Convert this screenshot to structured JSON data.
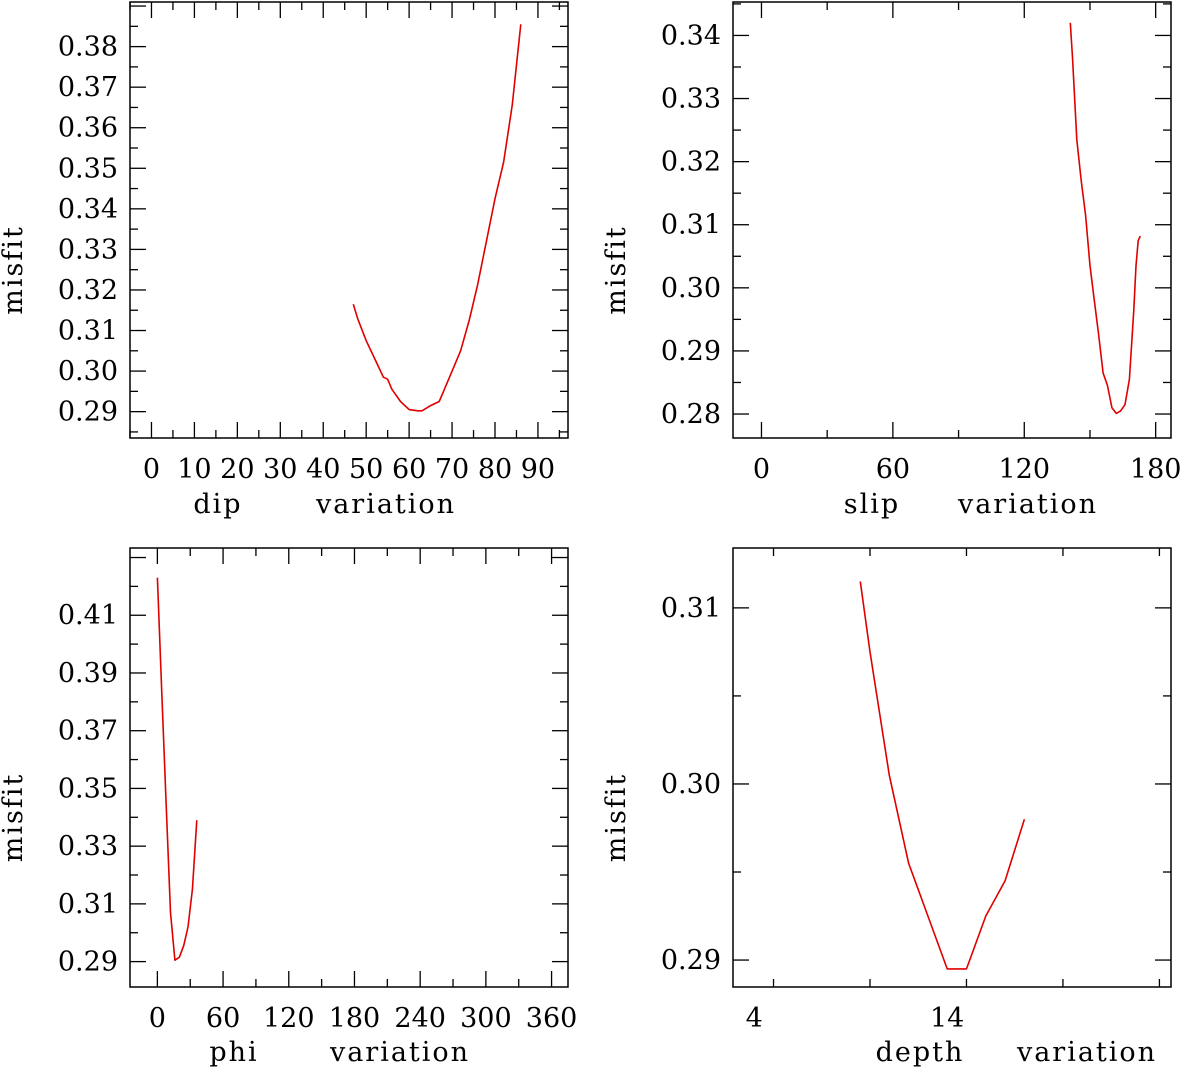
{
  "chart_data": [
    {
      "type": "line",
      "xlabel": "dip",
      "xlabel_suffix": "variation",
      "ylabel": "misfit",
      "xlim": [
        -5,
        97
      ],
      "ylim": [
        0.2835,
        0.391
      ],
      "xticks": [
        "0",
        "10",
        "20",
        "30",
        "40",
        "50",
        "60",
        "70",
        "80",
        "90"
      ],
      "yticks": [
        "0.29",
        "0.30",
        "0.31",
        "0.32",
        "0.33",
        "0.34",
        "0.35",
        "0.36",
        "0.37",
        "0.38"
      ],
      "color": "#e00000",
      "x": [
        47,
        48,
        50,
        52,
        54,
        55,
        56,
        58,
        60,
        62,
        63,
        65,
        67,
        68,
        70,
        72,
        74,
        76,
        78,
        80,
        82,
        84,
        86
      ],
      "y": [
        0.3165,
        0.313,
        0.3075,
        0.303,
        0.2985,
        0.298,
        0.2955,
        0.2925,
        0.2905,
        0.2902,
        0.2902,
        0.2915,
        0.2925,
        0.295,
        0.3,
        0.305,
        0.3125,
        0.3215,
        0.332,
        0.3425,
        0.3515,
        0.3655,
        0.3855
      ]
    },
    {
      "type": "line",
      "xlabel": "slip",
      "xlabel_suffix": "variation",
      "ylabel": "misfit",
      "xlim": [
        -13,
        187
      ],
      "ylim": [
        0.2762,
        0.3453
      ],
      "xticks": [
        "0",
        "60",
        "120",
        "180"
      ],
      "yticks": [
        "0.28",
        "0.29",
        "0.30",
        "0.31",
        "0.32",
        "0.33",
        "0.34"
      ],
      "color": "#e00000",
      "x": [
        141,
        142,
        144,
        146,
        148,
        150,
        152,
        154,
        156,
        158,
        160,
        162,
        164,
        166,
        168,
        170,
        171,
        172,
        173
      ],
      "y": [
        0.342,
        0.3365,
        0.3235,
        0.317,
        0.3115,
        0.3035,
        0.298,
        0.2925,
        0.2865,
        0.2845,
        0.281,
        0.2801,
        0.2805,
        0.2815,
        0.2855,
        0.2965,
        0.3035,
        0.3075,
        0.3082
      ]
    },
    {
      "type": "line",
      "xlabel": "phi",
      "xlabel_suffix": "variation",
      "ylabel": "misfit",
      "xlim": [
        -25,
        375
      ],
      "ylim": [
        0.2812,
        0.4333
      ],
      "xticks": [
        "0",
        "60",
        "120",
        "180",
        "240",
        "300",
        "360"
      ],
      "yticks": [
        "0.29",
        "0.31",
        "0.33",
        "0.35",
        "0.37",
        "0.39",
        "0.41"
      ],
      "color": "#e00000",
      "x": [
        0,
        4,
        8,
        12,
        16,
        20,
        24,
        28,
        32,
        36
      ],
      "y": [
        0.423,
        0.383,
        0.345,
        0.307,
        0.2905,
        0.2915,
        0.2955,
        0.302,
        0.315,
        0.339
      ]
    },
    {
      "type": "line",
      "xlabel": "depth",
      "xlabel_suffix": "variation",
      "ylabel": "misfit",
      "xlim": [
        2.9,
        25.6
      ],
      "ylim": [
        0.28847,
        0.3134
      ],
      "xticks": [
        "4",
        "14"
      ],
      "yticks": [
        "0.29",
        "0.30",
        "0.31"
      ],
      "color": "#e00000",
      "x": [
        9.5,
        10,
        11,
        12,
        13,
        14,
        15,
        16,
        17,
        18
      ],
      "y": [
        0.3115,
        0.3075,
        0.3005,
        0.2955,
        0.2925,
        0.2895,
        0.2895,
        0.2925,
        0.2945,
        0.298
      ]
    }
  ]
}
